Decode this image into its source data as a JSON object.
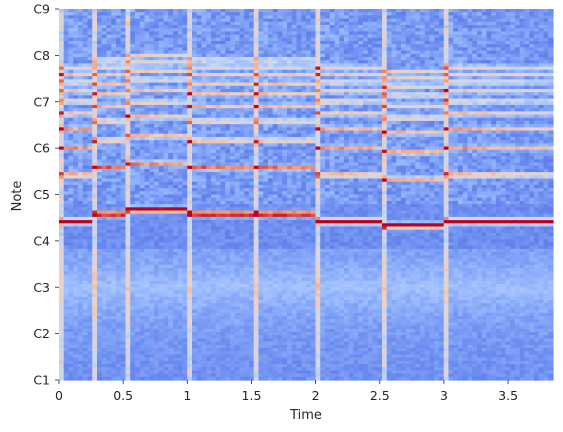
{
  "chart_data": {
    "type": "heatmap",
    "title": "",
    "xlabel": "Time",
    "ylabel": "Note",
    "xlim": [
      0,
      3.85
    ],
    "ylim_notes": [
      "C1",
      "C9"
    ],
    "x_ticks": [
      {
        "value": 0,
        "label": "0"
      },
      {
        "value": 0.5,
        "label": "0.5"
      },
      {
        "value": 1,
        "label": "1"
      },
      {
        "value": 1.5,
        "label": "1.5"
      },
      {
        "value": 2,
        "label": "2"
      },
      {
        "value": 2.5,
        "label": "2.5"
      },
      {
        "value": 3,
        "label": "3"
      },
      {
        "value": 3.5,
        "label": "3.5"
      }
    ],
    "y_ticks": [
      {
        "octave": 1,
        "label": "C1"
      },
      {
        "octave": 2,
        "label": "C2"
      },
      {
        "octave": 3,
        "label": "C3"
      },
      {
        "octave": 4,
        "label": "C4"
      },
      {
        "octave": 5,
        "label": "C5"
      },
      {
        "octave": 6,
        "label": "C6"
      },
      {
        "octave": 7,
        "label": "C7"
      },
      {
        "octave": 8,
        "label": "C8"
      },
      {
        "octave": 9,
        "label": "C9"
      }
    ],
    "colormap": "coolwarm",
    "colormap_stops": [
      "#3b4cc0",
      "#6788ee",
      "#9abbff",
      "#c9d7f0",
      "#edd1c2",
      "#f7a889",
      "#e26952",
      "#b40426"
    ],
    "onsets": [
      0,
      0.25,
      0.5,
      1.0,
      1.5,
      2.0,
      2.5,
      3.0
    ],
    "notes": [
      {
        "start": 0.0,
        "end": 0.25,
        "octave": 4.42
      },
      {
        "start": 0.25,
        "end": 0.5,
        "octave": 4.58
      },
      {
        "start": 0.5,
        "end": 1.0,
        "octave": 4.67
      },
      {
        "start": 1.0,
        "end": 1.5,
        "octave": 4.58
      },
      {
        "start": 1.5,
        "end": 2.0,
        "octave": 4.58
      },
      {
        "start": 2.0,
        "end": 2.5,
        "octave": 4.42
      },
      {
        "start": 2.5,
        "end": 3.0,
        "octave": 4.33
      },
      {
        "start": 3.0,
        "end": 3.85,
        "octave": 4.42
      }
    ],
    "grid": false,
    "legend": "none"
  }
}
